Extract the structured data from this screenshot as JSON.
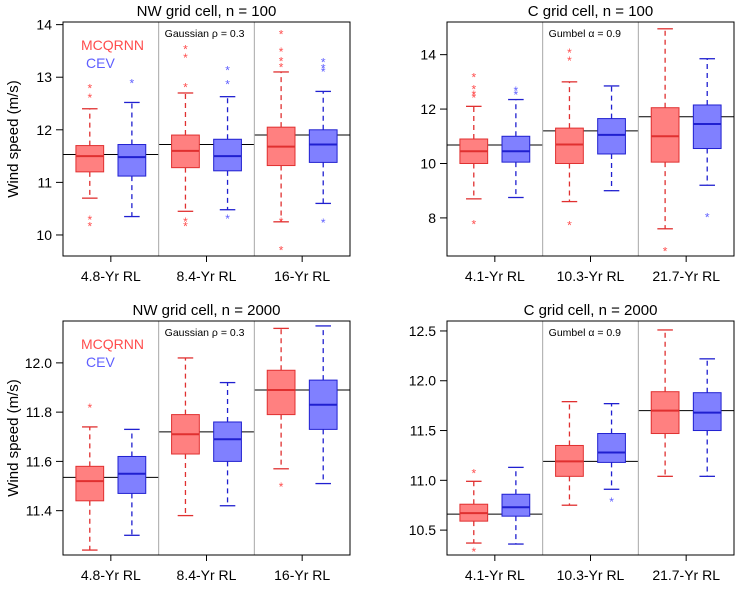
{
  "figure": {
    "ylabel": "Wind speed (m/s)"
  },
  "colors": {
    "mcqrnn": "#ff4d4d",
    "cev": "#5f5fff",
    "mcqrnn_fill": "#ff8080",
    "cev_fill": "#8080ff",
    "mcqrnn_line": "#e03030",
    "cev_line": "#2020d0"
  },
  "chart_data": [
    {
      "type": "boxplot",
      "title": "NW grid cell, n = 100",
      "annotation": "Gaussian ρ = 0.3",
      "legend": [
        "MCQRNN",
        "CEV"
      ],
      "ylabel": "Wind speed (m/s)",
      "ylim": [
        9.6,
        14.05
      ],
      "yticks": [
        10,
        11,
        12,
        13,
        14
      ],
      "categories": [
        "4.8-Yr RL",
        "8.4-Yr RL",
        "16-Yr RL"
      ],
      "reference_lines": [
        11.53,
        11.72,
        11.9
      ],
      "series": [
        {
          "name": "MCQRNN",
          "boxes": [
            {
              "whisker_low": 10.7,
              "q1": 11.2,
              "median": 11.5,
              "q3": 11.7,
              "whisker_high": 12.4,
              "outliers": [
                10.18,
                10.3,
                12.62,
                12.8
              ]
            },
            {
              "whisker_low": 10.45,
              "q1": 11.28,
              "median": 11.6,
              "q3": 11.9,
              "whisker_high": 12.7,
              "outliers": [
                10.18,
                10.27,
                12.82,
                13.38,
                13.55
              ]
            },
            {
              "whisker_low": 10.25,
              "q1": 11.32,
              "median": 11.68,
              "q3": 12.05,
              "whisker_high": 13.1,
              "outliers": [
                9.72,
                10.27,
                13.2,
                13.32,
                13.5,
                13.83
              ]
            }
          ]
        },
        {
          "name": "CEV",
          "boxes": [
            {
              "whisker_low": 10.35,
              "q1": 11.12,
              "median": 11.48,
              "q3": 11.72,
              "whisker_high": 12.52,
              "outliers": [
                12.9
              ]
            },
            {
              "whisker_low": 10.48,
              "q1": 11.22,
              "median": 11.5,
              "q3": 11.82,
              "whisker_high": 12.63,
              "outliers": [
                10.32,
                12.88,
                13.15
              ]
            },
            {
              "whisker_low": 10.6,
              "q1": 11.38,
              "median": 11.72,
              "q3": 12.0,
              "whisker_high": 12.73,
              "outliers": [
                10.25,
                13.12,
                13.18,
                13.3
              ]
            }
          ]
        }
      ]
    },
    {
      "type": "boxplot",
      "title": "C grid cell, n = 100",
      "annotation": "Gumbel α = 0.9",
      "ylabel": "",
      "ylim": [
        6.6,
        15.2
      ],
      "yticks": [
        8,
        10,
        12,
        14
      ],
      "categories": [
        "4.1-Yr RL",
        "10.3-Yr RL",
        "21.7-Yr RL"
      ],
      "reference_lines": [
        10.68,
        11.2,
        11.72
      ],
      "series": [
        {
          "name": "MCQRNN",
          "boxes": [
            {
              "whisker_low": 8.7,
              "q1": 10.0,
              "median": 10.45,
              "q3": 10.9,
              "whisker_high": 12.1,
              "outliers": [
                7.8,
                12.45,
                12.55,
                12.75,
                13.2
              ]
            },
            {
              "whisker_low": 8.6,
              "q1": 10.0,
              "median": 10.7,
              "q3": 11.3,
              "whisker_high": 13.0,
              "outliers": [
                7.75,
                13.8,
                14.1
              ]
            },
            {
              "whisker_low": 7.6,
              "q1": 10.05,
              "median": 11.0,
              "q3": 12.05,
              "whisker_high": 14.95,
              "outliers": [
                6.8
              ]
            }
          ]
        },
        {
          "name": "CEV",
          "boxes": [
            {
              "whisker_low": 8.75,
              "q1": 10.05,
              "median": 10.45,
              "q3": 11.0,
              "whisker_high": 12.35,
              "outliers": [
                12.55,
                12.7
              ]
            },
            {
              "whisker_low": 9.0,
              "q1": 10.35,
              "median": 11.05,
              "q3": 11.65,
              "whisker_high": 12.85,
              "outliers": []
            },
            {
              "whisker_low": 9.2,
              "q1": 10.55,
              "median": 11.45,
              "q3": 12.15,
              "whisker_high": 13.85,
              "outliers": [
                8.05
              ]
            }
          ]
        }
      ]
    },
    {
      "type": "boxplot",
      "title": "NW grid cell, n = 2000",
      "annotation": "Gaussian ρ = 0.3",
      "legend": [
        "MCQRNN",
        "CEV"
      ],
      "ylabel": "Wind speed (m/s)",
      "ylim": [
        11.22,
        12.17
      ],
      "yticks": [
        11.4,
        11.6,
        11.8,
        12.0
      ],
      "categories": [
        "4.8-Yr RL",
        "8.4-Yr RL",
        "16-Yr RL"
      ],
      "reference_lines": [
        11.535,
        11.72,
        11.89
      ],
      "series": [
        {
          "name": "MCQRNN",
          "boxes": [
            {
              "whisker_low": 11.24,
              "q1": 11.44,
              "median": 11.52,
              "q3": 11.58,
              "whisker_high": 11.74,
              "outliers": [
                11.82
              ]
            },
            {
              "whisker_low": 11.38,
              "q1": 11.63,
              "median": 11.71,
              "q3": 11.79,
              "whisker_high": 12.02,
              "outliers": []
            },
            {
              "whisker_low": 11.57,
              "q1": 11.79,
              "median": 11.89,
              "q3": 11.97,
              "whisker_high": 12.14,
              "outliers": [
                11.5
              ]
            }
          ]
        },
        {
          "name": "CEV",
          "boxes": [
            {
              "whisker_low": 11.3,
              "q1": 11.47,
              "median": 11.55,
              "q3": 11.62,
              "whisker_high": 11.73,
              "outliers": []
            },
            {
              "whisker_low": 11.42,
              "q1": 11.6,
              "median": 11.69,
              "q3": 11.76,
              "whisker_high": 11.92,
              "outliers": []
            },
            {
              "whisker_low": 11.51,
              "q1": 11.73,
              "median": 11.83,
              "q3": 11.93,
              "whisker_high": 12.15,
              "outliers": []
            }
          ]
        }
      ]
    },
    {
      "type": "boxplot",
      "title": "C grid cell, n = 2000",
      "annotation": "Gumbel α = 0.9",
      "ylabel": "",
      "ylim": [
        10.25,
        12.6
      ],
      "yticks": [
        10.5,
        11.0,
        11.5,
        12.0,
        12.5
      ],
      "categories": [
        "4.1-Yr RL",
        "10.3-Yr RL",
        "21.7-Yr RL"
      ],
      "reference_lines": [
        10.66,
        11.19,
        11.7
      ],
      "series": [
        {
          "name": "MCQRNN",
          "boxes": [
            {
              "whisker_low": 10.37,
              "q1": 10.59,
              "median": 10.67,
              "q3": 10.76,
              "whisker_high": 10.99,
              "outliers": [
                10.29,
                11.08
              ]
            },
            {
              "whisker_low": 10.75,
              "q1": 11.04,
              "median": 11.19,
              "q3": 11.35,
              "whisker_high": 11.79,
              "outliers": []
            },
            {
              "whisker_low": 11.04,
              "q1": 11.47,
              "median": 11.7,
              "q3": 11.89,
              "whisker_high": 12.51,
              "outliers": []
            }
          ]
        },
        {
          "name": "CEV",
          "boxes": [
            {
              "whisker_low": 10.36,
              "q1": 10.64,
              "median": 10.73,
              "q3": 10.86,
              "whisker_high": 11.13,
              "outliers": []
            },
            {
              "whisker_low": 10.91,
              "q1": 11.18,
              "median": 11.28,
              "q3": 11.47,
              "whisker_high": 11.77,
              "outliers": [
                10.79
              ]
            },
            {
              "whisker_low": 11.04,
              "q1": 11.5,
              "median": 11.68,
              "q3": 11.88,
              "whisker_high": 12.22,
              "outliers": []
            }
          ]
        }
      ]
    }
  ]
}
